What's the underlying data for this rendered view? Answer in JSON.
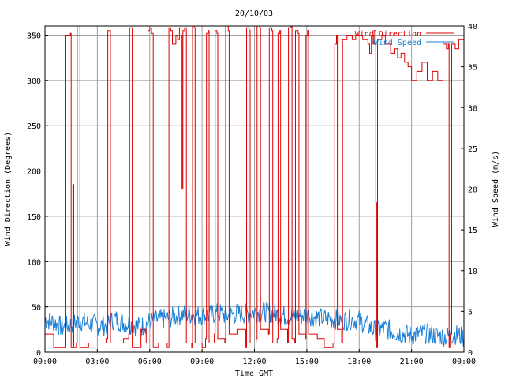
{
  "chart_data": {
    "type": "line",
    "title": "20/10/03",
    "xlabel": "Time GMT",
    "ylabel_left": "Wind Direction (Degrees)",
    "ylabel_right": "Wind Speed (m/s)",
    "x_ticks": [
      "00:00",
      "03:00",
      "06:00",
      "09:00",
      "12:00",
      "15:00",
      "18:00",
      "21:00",
      "00:00"
    ],
    "xlim_hours": [
      0,
      24
    ],
    "ylim_left": [
      0,
      360
    ],
    "ylim_right": [
      0,
      40
    ],
    "y_ticks_left": [
      "0",
      "50",
      "100",
      "150",
      "200",
      "250",
      "300",
      "350"
    ],
    "y_ticks_right": [
      "0",
      "5",
      "10",
      "15",
      "20",
      "25",
      "30",
      "35",
      "40"
    ],
    "grid": true,
    "legend_position": "top-right",
    "colors": {
      "direction": "#dd0000",
      "speed": "#1a7fd6",
      "grid": "#a0a0a0"
    },
    "series": [
      {
        "name": "Wind Direction",
        "axis": "left",
        "points": [
          [
            0.0,
            20
          ],
          [
            0.5,
            5
          ],
          [
            1.15,
            5
          ],
          [
            1.2,
            350
          ],
          [
            1.45,
            352
          ],
          [
            1.5,
            5
          ],
          [
            1.6,
            185
          ],
          [
            1.65,
            5
          ],
          [
            1.8,
            10
          ],
          [
            1.85,
            360
          ],
          [
            1.95,
            360
          ],
          [
            2.0,
            5
          ],
          [
            2.5,
            10
          ],
          [
            3.0,
            10
          ],
          [
            3.5,
            15
          ],
          [
            3.6,
            355
          ],
          [
            3.7,
            355
          ],
          [
            3.75,
            10
          ],
          [
            4.5,
            15
          ],
          [
            4.8,
            20
          ],
          [
            4.85,
            358
          ],
          [
            4.95,
            358
          ],
          [
            5.0,
            5
          ],
          [
            5.5,
            25
          ],
          [
            5.8,
            10
          ],
          [
            5.9,
            355
          ],
          [
            6.0,
            358
          ],
          [
            6.1,
            352
          ],
          [
            6.2,
            5
          ],
          [
            6.5,
            10
          ],
          [
            7.0,
            5
          ],
          [
            7.1,
            358
          ],
          [
            7.2,
            355
          ],
          [
            7.3,
            340
          ],
          [
            7.5,
            350
          ],
          [
            7.6,
            345
          ],
          [
            7.7,
            358
          ],
          [
            7.8,
            350
          ],
          [
            7.85,
            180
          ],
          [
            7.9,
            355
          ],
          [
            8.0,
            358
          ],
          [
            8.1,
            10
          ],
          [
            8.4,
            5
          ],
          [
            8.45,
            360
          ],
          [
            8.55,
            358
          ],
          [
            8.6,
            10
          ],
          [
            9.0,
            5
          ],
          [
            9.2,
            15
          ],
          [
            9.25,
            352
          ],
          [
            9.35,
            355
          ],
          [
            9.4,
            10
          ],
          [
            9.7,
            20
          ],
          [
            9.75,
            355
          ],
          [
            9.85,
            352
          ],
          [
            9.9,
            15
          ],
          [
            10.3,
            10
          ],
          [
            10.35,
            360
          ],
          [
            10.5,
            355
          ],
          [
            10.55,
            20
          ],
          [
            11.0,
            25
          ],
          [
            11.5,
            5
          ],
          [
            11.55,
            358
          ],
          [
            11.7,
            355
          ],
          [
            11.75,
            10
          ],
          [
            12.1,
            15
          ],
          [
            12.15,
            360
          ],
          [
            12.3,
            358
          ],
          [
            12.35,
            25
          ],
          [
            12.8,
            20
          ],
          [
            12.85,
            358
          ],
          [
            13.0,
            355
          ],
          [
            13.05,
            10
          ],
          [
            13.3,
            15
          ],
          [
            13.35,
            352
          ],
          [
            13.45,
            355
          ],
          [
            13.5,
            25
          ],
          [
            13.9,
            10
          ],
          [
            13.95,
            358
          ],
          [
            14.1,
            360
          ],
          [
            14.15,
            15
          ],
          [
            14.3,
            10
          ],
          [
            14.35,
            355
          ],
          [
            14.5,
            352
          ],
          [
            14.55,
            20
          ],
          [
            14.9,
            15
          ],
          [
            14.95,
            350
          ],
          [
            15.05,
            355
          ],
          [
            15.1,
            20
          ],
          [
            15.6,
            15
          ],
          [
            16.0,
            5
          ],
          [
            16.5,
            10
          ],
          [
            16.6,
            340
          ],
          [
            16.7,
            350
          ],
          [
            16.75,
            25
          ],
          [
            17.0,
            10
          ],
          [
            17.05,
            345
          ],
          [
            17.3,
            350
          ],
          [
            17.6,
            345
          ],
          [
            17.8,
            350
          ],
          [
            18.0,
            350
          ],
          [
            18.2,
            345
          ],
          [
            18.5,
            340
          ],
          [
            18.6,
            330
          ],
          [
            18.7,
            350
          ],
          [
            18.8,
            340
          ],
          [
            18.85,
            355
          ],
          [
            18.95,
            165
          ],
          [
            19.0,
            5
          ],
          [
            19.05,
            345
          ],
          [
            19.3,
            350
          ],
          [
            19.5,
            340
          ],
          [
            19.8,
            330
          ],
          [
            20.0,
            335
          ],
          [
            20.2,
            325
          ],
          [
            20.4,
            330
          ],
          [
            20.6,
            320
          ],
          [
            20.8,
            315
          ],
          [
            21.0,
            300
          ],
          [
            21.3,
            310
          ],
          [
            21.6,
            320
          ],
          [
            21.9,
            300
          ],
          [
            22.2,
            310
          ],
          [
            22.5,
            300
          ],
          [
            22.8,
            340
          ],
          [
            23.0,
            335
          ],
          [
            23.1,
            340
          ],
          [
            23.15,
            5
          ],
          [
            23.2,
            20
          ],
          [
            23.3,
            340
          ],
          [
            23.5,
            335
          ],
          [
            23.7,
            345
          ],
          [
            24.0,
            340
          ]
        ]
      },
      {
        "name": "Wind Speed",
        "axis": "right",
        "points": [
          [
            0,
            4.0
          ],
          [
            0.5,
            3.7
          ],
          [
            1,
            3.0
          ],
          [
            1.5,
            3.4
          ],
          [
            2,
            3.9
          ],
          [
            2.5,
            3.5
          ],
          [
            3,
            3.3
          ],
          [
            3.5,
            3.3
          ],
          [
            4,
            4.1
          ],
          [
            4.5,
            3.6
          ],
          [
            5,
            3.4
          ],
          [
            5.5,
            3.1
          ],
          [
            6,
            3.7
          ],
          [
            6.5,
            4.0
          ],
          [
            7,
            4.1
          ],
          [
            7.5,
            4.4
          ],
          [
            8,
            4.7
          ],
          [
            8.5,
            4.6
          ],
          [
            9,
            4.5
          ],
          [
            9.5,
            4.6
          ],
          [
            10,
            4.8
          ],
          [
            10.5,
            4.4
          ],
          [
            11,
            4.8
          ],
          [
            11.5,
            4.7
          ],
          [
            12,
            4.9
          ],
          [
            12.5,
            5.0
          ],
          [
            13,
            4.8
          ],
          [
            13.5,
            4.6
          ],
          [
            14,
            4.4
          ],
          [
            14.5,
            4.5
          ],
          [
            15,
            4.6
          ],
          [
            15.5,
            4.3
          ],
          [
            16,
            4.2
          ],
          [
            16.5,
            4.1
          ],
          [
            17,
            3.9
          ],
          [
            17.5,
            4.0
          ],
          [
            18,
            3.9
          ],
          [
            18.5,
            3.2
          ],
          [
            19,
            2.6
          ],
          [
            19.5,
            2.9
          ],
          [
            20,
            2.5
          ],
          [
            20.5,
            2.3
          ],
          [
            21,
            2.0
          ],
          [
            21.5,
            2.3
          ],
          [
            22,
            2.2
          ],
          [
            22.5,
            2.0
          ],
          [
            23,
            1.9
          ],
          [
            23.5,
            2.2
          ],
          [
            24,
            1.8
          ]
        ]
      }
    ]
  }
}
